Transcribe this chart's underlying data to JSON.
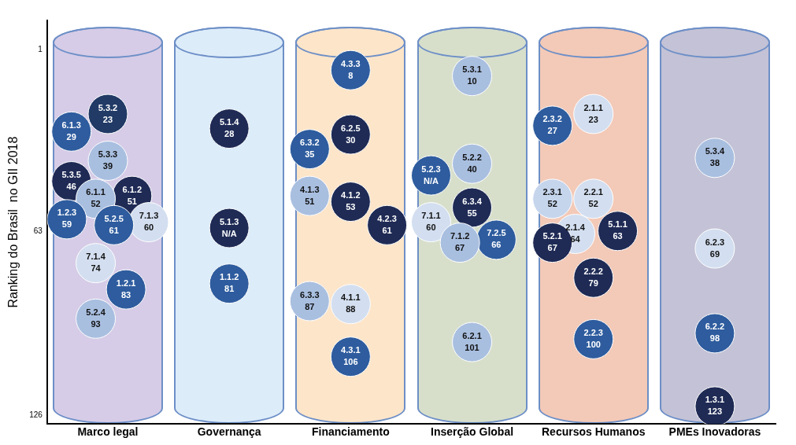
{
  "chart_data": {
    "type": "scatter",
    "ylabel": "Ranking do Brasil  no GII 2018",
    "categories": [
      "Marco legal",
      "Governança",
      "Financiamento",
      "Inserção Global",
      "Recursos Humanos",
      "PMEs Inovadoras"
    ],
    "ylim": [
      129,
      -9
    ],
    "yticks": [
      1,
      63,
      126
    ],
    "grid": false,
    "legend": false,
    "marker": "circle",
    "series": [
      {
        "x": [
          "Marco legal",
          "Marco legal",
          "Marco legal",
          "Marco legal",
          "Marco legal",
          "Marco legal",
          "Marco legal",
          "Marco legal",
          "Marco legal",
          "Marco legal",
          "Marco legal",
          "Marco legal"
        ],
        "values": [
          23,
          29,
          39,
          46,
          51,
          52,
          59,
          60,
          61,
          74,
          83,
          93
        ],
        "colors": [
          "#213a66",
          "#2e5c9e",
          "#a9bfe0",
          "#1f2b55",
          "#1f2b55",
          "#a9bfe0",
          "#2e5c9e",
          "#d3dff0",
          "#2e5c9e",
          "#d3dff0",
          "#2e5c9e",
          "#a9bfe0"
        ],
        "value_labels": [
          "5.3.2\n23",
          "6.1.3\n29",
          "5.3.3\n39",
          "5.3.5\n46",
          "6.1.2\n51",
          "6.1.1\n52",
          "1.2.3\n59",
          "7.1.3\n60",
          "5.2.5\n61",
          "7.1.4\n74",
          "1.2.1\n83",
          "5.2.4\n93"
        ]
      },
      {
        "x": [
          "Governança",
          "Governança",
          "Governança"
        ],
        "values": [
          28,
          62,
          81
        ],
        "colors": [
          "#1f2b55",
          "#1f2b55",
          "#2e5c9e"
        ],
        "value_labels": [
          "5.1.4\n28",
          "5.1.3\nN/A",
          "1.1.2\n81"
        ]
      },
      {
        "x": [
          "Financiamento",
          "Financiamento",
          "Financiamento",
          "Financiamento",
          "Financiamento",
          "Financiamento",
          "Financiamento",
          "Financiamento",
          "Financiamento"
        ],
        "values": [
          8,
          30,
          35,
          53,
          51,
          61,
          88,
          87,
          106
        ],
        "colors": [
          "#2e5c9e",
          "#1f2b55",
          "#2e5c9e",
          "#1f2b55",
          "#a9bfe0",
          "#1f2b55",
          "#d3dff0",
          "#a9bfe0",
          "#2e5c9e"
        ],
        "value_labels": [
          "4.3.3\n8",
          "6.2.5\n30",
          "6.3.2\n35",
          "4.1.2\n53",
          "4.1.3\n51",
          "4.2.3\n61",
          "4.1.1\n88",
          "6.3.3\n87",
          "4.3.1\n106"
        ]
      },
      {
        "x": [
          "Inserção Global",
          "Inserção Global",
          "Inserção Global",
          "Inserção Global",
          "Inserção Global",
          "Inserção Global",
          "Inserção Global",
          "Inserção Global"
        ],
        "values": [
          10,
          40,
          44,
          55,
          60,
          66,
          67,
          101
        ],
        "colors": [
          "#a9bfe0",
          "#a9bfe0",
          "#2e5c9e",
          "#1f2b55",
          "#d3dff0",
          "#2e5c9e",
          "#a9bfe0",
          "#a9bfe0"
        ],
        "value_labels": [
          "5.3.1\n10",
          "5.2.2\n40",
          "5.2.3\nN/A",
          "6.3.4\n55",
          "7.1.1\n60",
          "7.2.5\n66",
          "7.1.2\n67",
          "6.2.1\n101"
        ]
      },
      {
        "x": [
          "Recursos Humanos",
          "Recursos Humanos",
          "Recursos Humanos",
          "Recursos Humanos",
          "Recursos Humanos",
          "Recursos Humanos",
          "Recursos Humanos",
          "Recursos Humanos",
          "Recursos Humanos"
        ],
        "values": [
          23,
          27,
          52,
          52,
          63,
          64,
          67,
          79,
          100
        ],
        "colors": [
          "#d3dff0",
          "#2e5c9e",
          "#d3dff0",
          "#c5d5ec",
          "#1f2b55",
          "#d3dff0",
          "#1f2b55",
          "#1f2b55",
          "#2e5c9e"
        ],
        "value_labels": [
          "2.1.1\n23",
          "2.3.2\n27",
          "2.2.1\n52",
          "2.3.1\n52",
          "5.1.1\n63",
          "2.1.4\n64",
          "5.2.1\n67",
          "2.2.2\n79",
          "2.2.3\n100"
        ]
      },
      {
        "x": [
          "PMEs Inovadoras",
          "PMEs Inovadoras",
          "PMEs Inovadoras",
          "PMEs Inovadoras"
        ],
        "values": [
          38,
          69,
          98,
          123
        ],
        "colors": [
          "#a9bfe0",
          "#d3dff0",
          "#2e5c9e",
          "#1f2b55"
        ],
        "value_labels": [
          "5.3.4\n38",
          "6.2.3\n69",
          "6.2.2\n98",
          "1.3.1\n123"
        ]
      }
    ]
  }
}
